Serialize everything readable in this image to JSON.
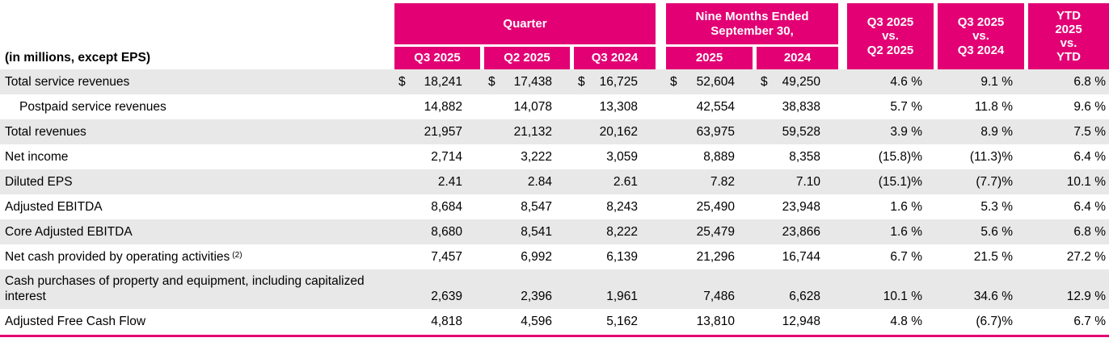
{
  "table": {
    "units_label": "(in millions, except EPS)",
    "colors": {
      "magenta": "#E20074",
      "row_shade": "#E8E8E8"
    },
    "header": {
      "quarter_group": "Quarter",
      "nine_months_group": "Nine Months Ended September 30,",
      "sub_cols": [
        "Q3 2025",
        "Q2 2025",
        "Q3 2024",
        "2025",
        "2024"
      ],
      "vs_cols": [
        "Q3 2025\nvs.\nQ2 2025",
        "Q3 2025\nvs.\nQ3 2024",
        "YTD\n2025\nvs.\nYTD"
      ]
    },
    "rows": [
      {
        "label": "Total service revenues",
        "indent": false,
        "dollar": true,
        "shaded": true,
        "values": [
          "18,241",
          "17,438",
          "16,725",
          "52,604",
          "49,250"
        ],
        "pct": [
          "4.6 %",
          "9.1 %",
          "6.8 %"
        ]
      },
      {
        "label": "Postpaid service revenues",
        "indent": true,
        "dollar": false,
        "shaded": false,
        "values": [
          "14,882",
          "14,078",
          "13,308",
          "42,554",
          "38,838"
        ],
        "pct": [
          "5.7 %",
          "11.8 %",
          "9.6 %"
        ]
      },
      {
        "label": "Total revenues",
        "indent": false,
        "dollar": false,
        "shaded": true,
        "values": [
          "21,957",
          "21,132",
          "20,162",
          "63,975",
          "59,528"
        ],
        "pct": [
          "3.9 %",
          "8.9 %",
          "7.5 %"
        ]
      },
      {
        "label": "Net income",
        "indent": false,
        "dollar": false,
        "shaded": false,
        "values": [
          "2,714",
          "3,222",
          "3,059",
          "8,889",
          "8,358"
        ],
        "pct": [
          "(15.8)%",
          "(11.3)%",
          "6.4 %"
        ]
      },
      {
        "label": "Diluted EPS",
        "indent": false,
        "dollar": false,
        "shaded": true,
        "values": [
          "2.41",
          "2.84",
          "2.61",
          "7.82",
          "7.10"
        ],
        "pct": [
          "(15.1)%",
          "(7.7)%",
          "10.1 %"
        ]
      },
      {
        "label": "Adjusted EBITDA",
        "indent": false,
        "dollar": false,
        "shaded": false,
        "values": [
          "8,684",
          "8,547",
          "8,243",
          "25,490",
          "23,948"
        ],
        "pct": [
          "1.6 %",
          "5.3 %",
          "6.4 %"
        ]
      },
      {
        "label": "Core Adjusted EBITDA",
        "indent": false,
        "dollar": false,
        "shaded": true,
        "values": [
          "8,680",
          "8,541",
          "8,222",
          "25,479",
          "23,866"
        ],
        "pct": [
          "1.6 %",
          "5.6 %",
          "6.8 %"
        ]
      },
      {
        "label": "Net cash provided by operating activities",
        "sup": "(2)",
        "indent": false,
        "dollar": false,
        "shaded": false,
        "values": [
          "7,457",
          "6,992",
          "6,139",
          "21,296",
          "16,744"
        ],
        "pct": [
          "6.7 %",
          "21.5 %",
          "27.2 %"
        ]
      },
      {
        "label": "Cash purchases of property and equipment, including capitalized interest",
        "indent": false,
        "dollar": false,
        "shaded": true,
        "values": [
          "2,639",
          "2,396",
          "1,961",
          "7,486",
          "6,628"
        ],
        "pct": [
          "10.1 %",
          "34.6 %",
          "12.9 %"
        ]
      },
      {
        "label": "Adjusted Free Cash Flow",
        "indent": false,
        "dollar": false,
        "shaded": false,
        "values": [
          "4,818",
          "4,596",
          "5,162",
          "13,810",
          "12,948"
        ],
        "pct": [
          "4.8 %",
          "(6.7)%",
          "6.7 %"
        ]
      }
    ]
  }
}
